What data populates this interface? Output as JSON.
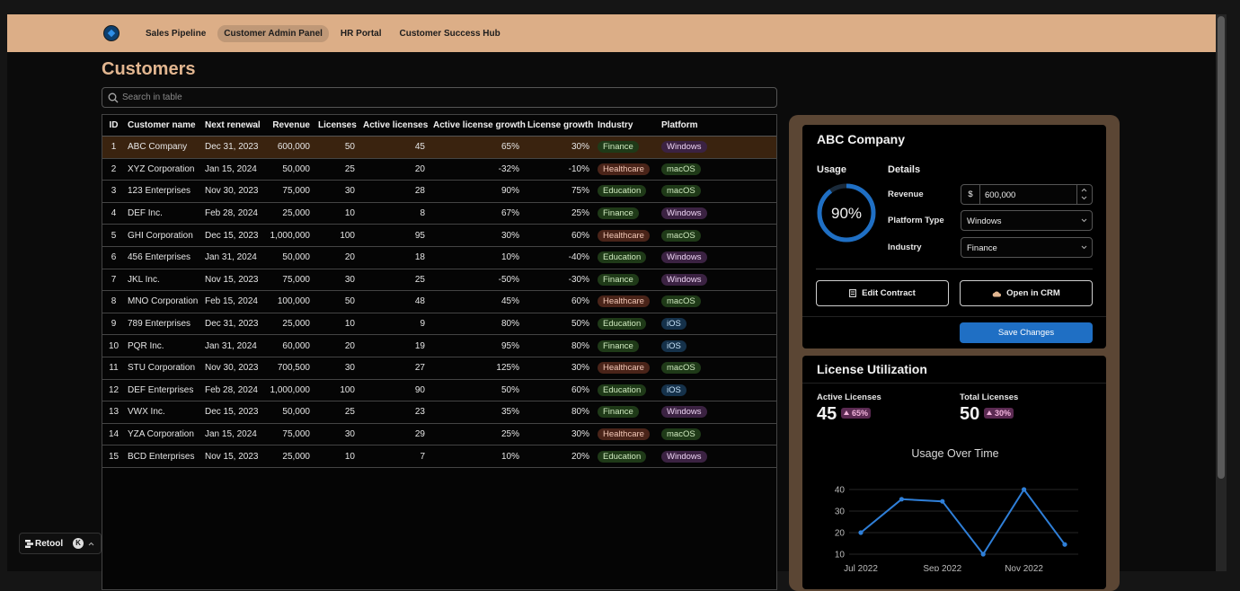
{
  "nav": {
    "items": [
      "Sales Pipeline",
      "Customer Admin Panel",
      "HR Portal",
      "Customer Success Hub"
    ],
    "active": 1
  },
  "customers": {
    "title": "Customers",
    "search_placeholder": "Search in table",
    "columns": [
      "ID",
      "Customer name",
      "Next renewal",
      "Revenue",
      "Licenses",
      "Active licenses",
      "Active license growth",
      "License growth",
      "Industry",
      "Platform"
    ],
    "selected_row": 0,
    "rows": [
      [
        1,
        "ABC Company",
        "Dec 31, 2023",
        "600,000",
        50,
        45,
        "65%",
        "30%",
        "Finance",
        "Windows"
      ],
      [
        2,
        "XYZ Corporation",
        "Jan 15, 2024",
        "50,000",
        25,
        20,
        "-32%",
        "-10%",
        "Healthcare",
        "macOS"
      ],
      [
        3,
        "123 Enterprises",
        "Nov 30, 2023",
        "75,000",
        30,
        28,
        "90%",
        "75%",
        "Education",
        "macOS"
      ],
      [
        4,
        "DEF Inc.",
        "Feb 28, 2024",
        "25,000",
        10,
        8,
        "67%",
        "25%",
        "Finance",
        "Windows"
      ],
      [
        5,
        "GHI Corporation",
        "Dec 15, 2023",
        "1,000,000",
        100,
        95,
        "30%",
        "60%",
        "Healthcare",
        "macOS"
      ],
      [
        6,
        "456 Enterprises",
        "Jan 31, 2024",
        "50,000",
        20,
        18,
        "10%",
        "-40%",
        "Education",
        "Windows"
      ],
      [
        7,
        "JKL Inc.",
        "Nov 15, 2023",
        "75,000",
        30,
        25,
        "-50%",
        "-30%",
        "Finance",
        "Windows"
      ],
      [
        8,
        "MNO Corporation",
        "Feb 15, 2024",
        "100,000",
        50,
        48,
        "45%",
        "60%",
        "Healthcare",
        "macOS"
      ],
      [
        9,
        "789 Enterprises",
        "Dec 31, 2023",
        "25,000",
        10,
        9,
        "80%",
        "50%",
        "Education",
        "iOS"
      ],
      [
        10,
        "PQR Inc.",
        "Jan 31, 2024",
        "60,000",
        20,
        19,
        "95%",
        "80%",
        "Finance",
        "iOS"
      ],
      [
        11,
        "STU Corporation",
        "Nov 30, 2023",
        "700,500",
        30,
        27,
        "125%",
        "30%",
        "Healthcare",
        "macOS"
      ],
      [
        12,
        "DEF Enterprises",
        "Feb 28, 2024",
        "1,000,000",
        100,
        90,
        "50%",
        "60%",
        "Education",
        "iOS"
      ],
      [
        13,
        "VWX Inc.",
        "Dec 15, 2023",
        "50,000",
        25,
        23,
        "35%",
        "80%",
        "Finance",
        "Windows"
      ],
      [
        14,
        "YZA Corporation",
        "Jan 15, 2024",
        "75,000",
        30,
        29,
        "25%",
        "30%",
        "Healthcare",
        "macOS"
      ],
      [
        15,
        "BCD Enterprises",
        "Nov 15, 2023",
        "25,000",
        10,
        7,
        "10%",
        "20%",
        "Education",
        "Windows"
      ]
    ],
    "tag_colors": {
      "Finance": [
        "#1f3a18",
        "#cfe9bf"
      ],
      "Healthcare": [
        "#4a2419",
        "#f2c7b6"
      ],
      "Education": [
        "#1f3a18",
        "#cfe9bf"
      ],
      "Windows": [
        "#3b2242",
        "#ecd3f2"
      ],
      "macOS": [
        "#1f3a18",
        "#cfe9bf"
      ],
      "iOS": [
        "#15314a",
        "#c6e1f7"
      ]
    }
  },
  "detail": {
    "title": "ABC Company",
    "usage_label": "Usage",
    "usage": 90,
    "usage_text": "90%",
    "details_label": "Details",
    "fields": [
      {
        "label": "Revenue",
        "prefix": "$",
        "value": "600,000"
      },
      {
        "label": "Platform Type",
        "value": "Windows"
      },
      {
        "label": "Industry",
        "value": "Finance"
      }
    ],
    "buttons": [
      "Edit Contract",
      "Open in CRM"
    ],
    "save": "Save Changes"
  },
  "utilization": {
    "title": "License Utilization",
    "stats": [
      {
        "label": "Active Licenses",
        "value": 45,
        "change": "65%"
      },
      {
        "label": "Total Licenses",
        "value": 50,
        "change": "30%"
      }
    ],
    "chart": {
      "type": "line",
      "title": "Usage Over Time",
      "categories": [
        "Jul 2022",
        null,
        "Sep 2022",
        null,
        "Nov 2022",
        null
      ],
      "series": [
        {
          "color": "#2f7fd8",
          "values": [
            20,
            35.5,
            34.5,
            10,
            40,
            14.5
          ]
        }
      ],
      "ylim": [
        10,
        45
      ],
      "yticks": [
        10,
        20,
        30,
        40
      ],
      "grid": true
    }
  },
  "badge": {
    "label": "Retool",
    "shortcut": "K"
  }
}
